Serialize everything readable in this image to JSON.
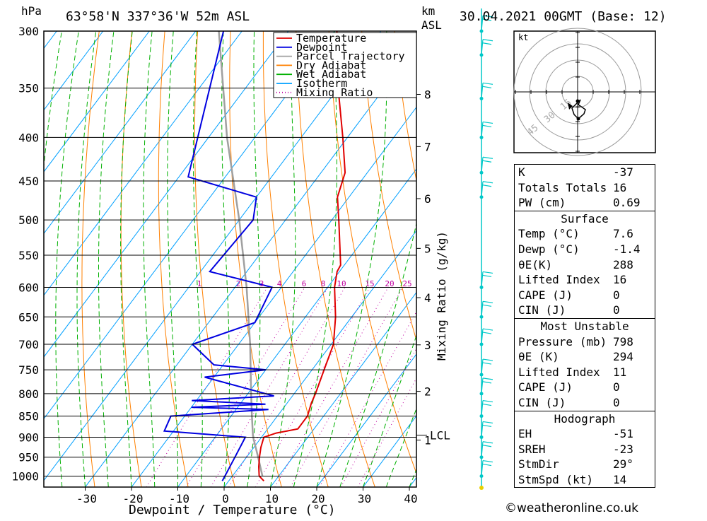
{
  "header": {
    "left_unit": "hPa",
    "location": "63°58'N  337°36'W  52m  ASL",
    "right_unit_1": "km",
    "right_unit_2": "ASL",
    "datetime": "30.04.2021  00GMT  (Base: 12)"
  },
  "chart_data": {
    "type": "skew-t",
    "xlabel": "Dewpoint / Temperature (°C)",
    "ylabel_right": "Mixing Ratio (g/kg)",
    "pressure_ticks": [
      300,
      350,
      400,
      450,
      500,
      550,
      600,
      650,
      700,
      750,
      800,
      850,
      900,
      950,
      1000
    ],
    "temperature_ticks": [
      -30,
      -20,
      -10,
      0,
      10,
      20,
      30,
      40
    ],
    "km_ticks": [
      {
        "label": "8",
        "p": 356
      },
      {
        "label": "7",
        "p": 410
      },
      {
        "label": "6",
        "p": 472
      },
      {
        "label": "5",
        "p": 540
      },
      {
        "label": "4",
        "p": 617
      },
      {
        "label": "3",
        "p": 701
      },
      {
        "label": "2",
        "p": 795
      },
      {
        "label": "1",
        "p": 907
      }
    ],
    "lcl": {
      "label": "LCL",
      "p": 895
    },
    "mixing_ratio_labels": [
      "1",
      "2",
      "3",
      "4",
      "6",
      "8",
      "10",
      "15",
      "20",
      "25"
    ],
    "legend": [
      "Temperature",
      "Dewpoint",
      "Parcel Trajectory",
      "Dry Adiabat",
      "Wet Adiabat",
      "Isotherm",
      "Mixing Ratio"
    ],
    "colors": {
      "temperature": "#e00000",
      "dewpoint": "#0000e0",
      "parcel": "#a0a0a0",
      "dry_adiabat": "#ff8000",
      "wet_adiabat": "#00b000",
      "isotherm": "#00a0ff",
      "mixing_ratio": "#c000a0",
      "wind": "#00c8c8"
    },
    "temperature_profile": [
      {
        "p": 1013,
        "t": 7.6
      },
      {
        "p": 1000,
        "t": 5.8
      },
      {
        "p": 975,
        "t": 4.2
      },
      {
        "p": 950,
        "t": 2.8
      },
      {
        "p": 925,
        "t": 1.5
      },
      {
        "p": 900,
        "t": 0.5
      },
      {
        "p": 890,
        "t": 2.5
      },
      {
        "p": 880,
        "t": 6.5
      },
      {
        "p": 850,
        "t": 6.5
      },
      {
        "p": 820,
        "t": 5.2
      },
      {
        "p": 800,
        "t": 4.6
      },
      {
        "p": 750,
        "t": 2.6
      },
      {
        "p": 700,
        "t": 0.5
      },
      {
        "p": 650,
        "t": -3.5
      },
      {
        "p": 600,
        "t": -8.5
      },
      {
        "p": 575,
        "t": -10.5
      },
      {
        "p": 565,
        "t": -10.8
      },
      {
        "p": 500,
        "t": -18.5
      },
      {
        "p": 470,
        "t": -22.5
      },
      {
        "p": 440,
        "t": -24.8
      },
      {
        "p": 400,
        "t": -31
      },
      {
        "p": 350,
        "t": -40
      },
      {
        "p": 300,
        "t": -49.5
      }
    ],
    "dewpoint_profile": [
      {
        "p": 1013,
        "t": -1.4
      },
      {
        "p": 1000,
        "t": -1.6
      },
      {
        "p": 950,
        "t": -2.5
      },
      {
        "p": 900,
        "t": -3.5
      },
      {
        "p": 885,
        "t": -22
      },
      {
        "p": 850,
        "t": -23
      },
      {
        "p": 835,
        "t": -3
      },
      {
        "p": 830,
        "t": -20
      },
      {
        "p": 823,
        "t": -4.5
      },
      {
        "p": 815,
        "t": -21
      },
      {
        "p": 805,
        "t": -4
      },
      {
        "p": 765,
        "t": -22
      },
      {
        "p": 750,
        "t": -10
      },
      {
        "p": 740,
        "t": -22
      },
      {
        "p": 700,
        "t": -30
      },
      {
        "p": 660,
        "t": -20
      },
      {
        "p": 600,
        "t": -22
      },
      {
        "p": 575,
        "t": -38
      },
      {
        "p": 500,
        "t": -37
      },
      {
        "p": 470,
        "t": -40
      },
      {
        "p": 445,
        "t": -58
      },
      {
        "p": 300,
        "t": -74
      }
    ],
    "parcel_profile": [
      {
        "p": 1000,
        "t": 6.5
      },
      {
        "p": 950,
        "t": 2.5
      },
      {
        "p": 900,
        "t": -1.8
      },
      {
        "p": 895,
        "t": -2.2
      },
      {
        "p": 850,
        "t": -5.5
      },
      {
        "p": 800,
        "t": -9.3
      },
      {
        "p": 700,
        "t": -17.5
      },
      {
        "p": 600,
        "t": -27.5
      },
      {
        "p": 500,
        "t": -40
      },
      {
        "p": 400,
        "t": -56
      },
      {
        "p": 300,
        "t": -75
      }
    ],
    "wind_barbs_p": [
      300,
      320,
      360,
      400,
      440,
      470,
      600,
      650,
      700,
      760,
      800,
      850,
      900,
      950,
      1000
    ]
  },
  "hodograph": {
    "unit": "kt",
    "ring_labels": [
      "15",
      "30",
      "45"
    ]
  },
  "indices": {
    "rows": [
      {
        "label": "K",
        "value": "-37"
      },
      {
        "label": "Totals Totals",
        "value": "16"
      },
      {
        "label": "PW (cm)",
        "value": "0.69"
      }
    ]
  },
  "surface": {
    "title": "Surface",
    "rows": [
      {
        "label": "Temp (°C)",
        "value": "7.6"
      },
      {
        "label": "Dewp (°C)",
        "value": "-1.4"
      },
      {
        "label": "θE(K)",
        "value": "288"
      },
      {
        "label": "Lifted Index",
        "value": "16"
      },
      {
        "label": "CAPE (J)",
        "value": "0"
      },
      {
        "label": "CIN (J)",
        "value": "0"
      }
    ]
  },
  "most_unstable": {
    "title": "Most Unstable",
    "rows": [
      {
        "label": "Pressure (mb)",
        "value": "798"
      },
      {
        "label": "θE (K)",
        "value": "294"
      },
      {
        "label": "Lifted Index",
        "value": "11"
      },
      {
        "label": "CAPE (J)",
        "value": "0"
      },
      {
        "label": "CIN (J)",
        "value": "0"
      }
    ]
  },
  "hodograph_table": {
    "title": "Hodograph",
    "rows": [
      {
        "label": "EH",
        "value": "-51"
      },
      {
        "label": "SREH",
        "value": "-23"
      },
      {
        "label": "StmDir",
        "value": "29°"
      },
      {
        "label": "StmSpd (kt)",
        "value": "14"
      }
    ]
  },
  "footer": {
    "copyright": "©weatheronline.co.uk"
  }
}
